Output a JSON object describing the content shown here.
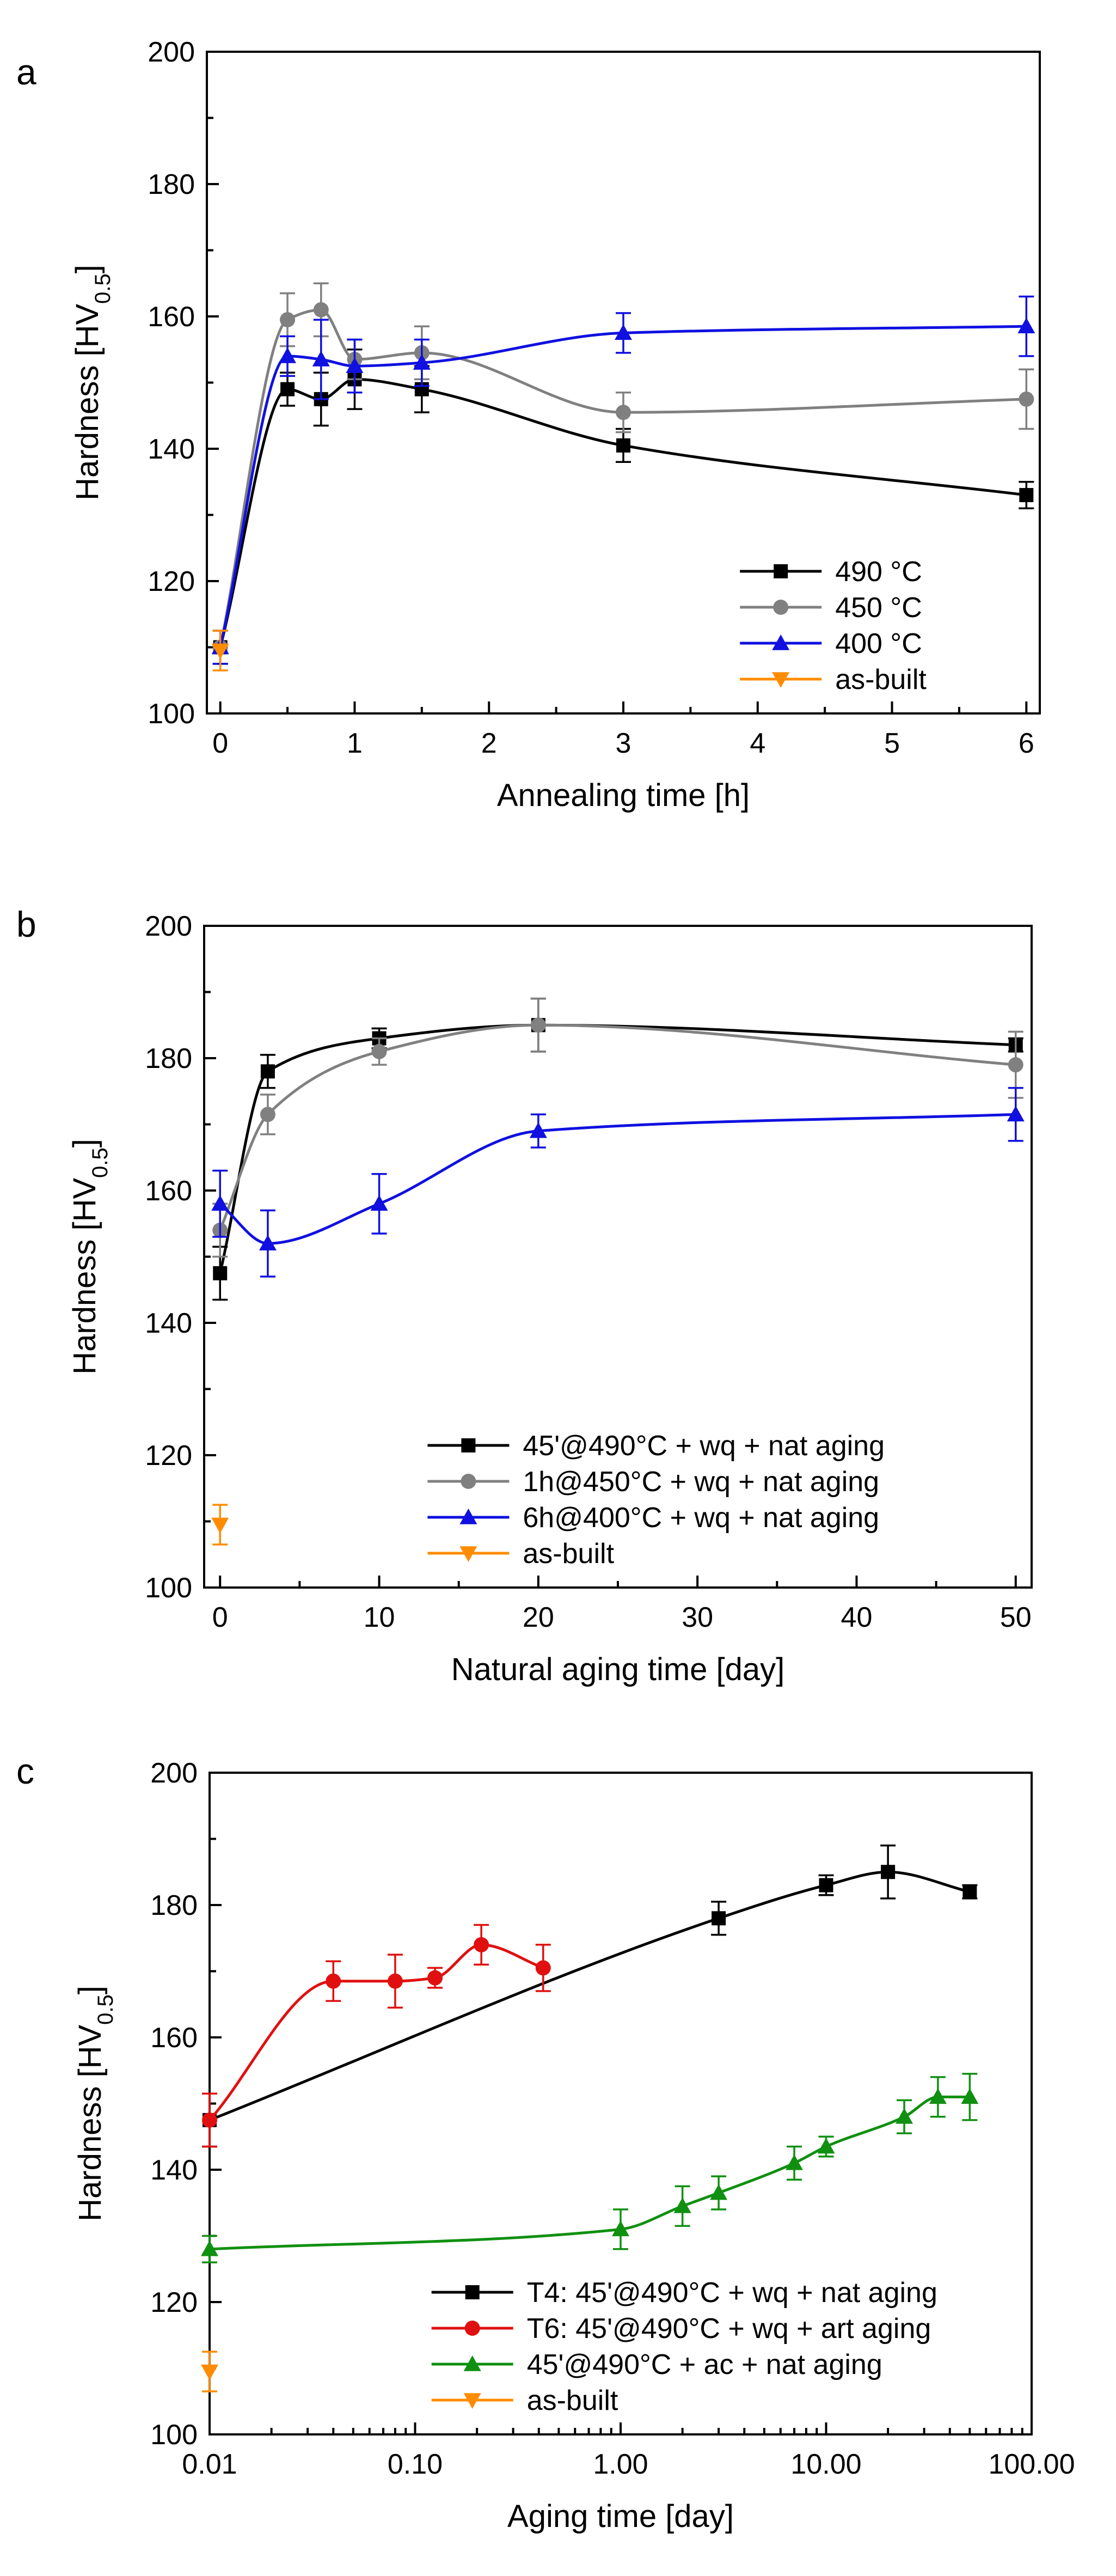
{
  "chart_data": [
    {
      "panel": "a",
      "type": "line",
      "xscale": "linear",
      "xlabel": "Annealing time [h]",
      "ylabel_main": "Hardness [HV",
      "ylabel_sub": "0.5",
      "ylabel_end": "]",
      "xlim": [
        -0.1,
        6.1
      ],
      "ylim": [
        100,
        200
      ],
      "xticks": [
        0,
        1,
        2,
        3,
        4,
        5,
        6
      ],
      "xticklabels": [
        "0",
        "1",
        "2",
        "3",
        "4",
        "5",
        "6"
      ],
      "yticks": [
        100,
        120,
        140,
        160,
        180,
        200
      ],
      "yticklabels": [
        "100",
        "120",
        "140",
        "160",
        "180",
        "200"
      ],
      "legend_position": "bottom-right",
      "series": [
        {
          "name": "490 °C",
          "color": "#000000",
          "marker": "square",
          "x": [
            0,
            0.5,
            0.75,
            1,
            1.5,
            3,
            6
          ],
          "y": [
            110,
            149,
            147.5,
            150.5,
            149,
            140.5,
            133
          ],
          "err": [
            2.5,
            2.5,
            4,
            4.5,
            3.5,
            2.5,
            2
          ]
        },
        {
          "name": "450 °C",
          "color": "#808080",
          "marker": "circle",
          "x": [
            0,
            0.5,
            0.75,
            1,
            1.5,
            3,
            6
          ],
          "y": [
            110,
            159.5,
            161,
            153.5,
            154.5,
            145.5,
            147.5
          ],
          "err": [
            2.5,
            4,
            4,
            3,
            4,
            3,
            4.5
          ]
        },
        {
          "name": "400 °C",
          "color": "#1010e0",
          "marker": "triangle-up",
          "x": [
            0,
            0.5,
            0.75,
            1,
            1.5,
            3,
            6
          ],
          "y": [
            110,
            154,
            153.5,
            152.5,
            153,
            157.5,
            158.5
          ],
          "err": [
            2.5,
            3,
            6,
            4,
            3.5,
            3,
            4.5
          ]
        },
        {
          "name": "as-built",
          "color": "#ff8c00",
          "marker": "triangle-down",
          "x": [
            0
          ],
          "y": [
            109.5
          ],
          "err": [
            3
          ]
        }
      ]
    },
    {
      "panel": "b",
      "type": "line",
      "xscale": "linear",
      "xlabel": "Natural aging time [day]",
      "ylabel_main": "Hardness [HV",
      "ylabel_sub": "0.5",
      "ylabel_end": "]",
      "xlim": [
        -1,
        51
      ],
      "ylim": [
        100,
        200
      ],
      "xticks": [
        0,
        10,
        20,
        30,
        40,
        50
      ],
      "xticklabels": [
        "0",
        "10",
        "20",
        "30",
        "40",
        "50"
      ],
      "yticks": [
        100,
        120,
        140,
        160,
        180,
        200
      ],
      "yticklabels": [
        "100",
        "120",
        "140",
        "160",
        "180",
        "200"
      ],
      "legend_position": "bottom-right",
      "series": [
        {
          "name": "45'@490°C + wq + nat aging",
          "color": "#000000",
          "marker": "square",
          "x": [
            0,
            3,
            10,
            20,
            50
          ],
          "y": [
            147.5,
            178,
            183,
            185,
            182
          ],
          "err": [
            4,
            2.5,
            1.5,
            4,
            1
          ]
        },
        {
          "name": "1h@450°C + wq + nat aging",
          "color": "#808080",
          "marker": "circle",
          "x": [
            0,
            3,
            10,
            20,
            50
          ],
          "y": [
            154,
            171.5,
            181,
            185,
            179
          ],
          "err": [
            4,
            3,
            2,
            4,
            5
          ]
        },
        {
          "name": "6h@400°C + wq + nat aging",
          "color": "#1010e0",
          "marker": "triangle-up",
          "x": [
            0,
            3,
            10,
            20,
            50
          ],
          "y": [
            158,
            152,
            158,
            169,
            171.5
          ],
          "err": [
            5,
            5,
            4.5,
            2.5,
            4
          ]
        },
        {
          "name": "as-built",
          "color": "#ff8c00",
          "marker": "triangle-down",
          "x": [
            0
          ],
          "y": [
            109.5
          ],
          "err": [
            3
          ]
        }
      ]
    },
    {
      "panel": "c",
      "type": "line",
      "xscale": "log",
      "xlabel": "Aging time [day]",
      "ylabel_main": "Hardness [HV",
      "ylabel_sub": "0.5",
      "ylabel_end": "]",
      "xlim": [
        0.01,
        100
      ],
      "ylim": [
        100,
        200
      ],
      "xticks": [
        0.01,
        0.1,
        1,
        10,
        100
      ],
      "xticklabels": [
        "0.01",
        "0.10",
        "1.00",
        "10.00",
        "100.00"
      ],
      "yticks": [
        100,
        120,
        140,
        160,
        180,
        200
      ],
      "yticklabels": [
        "100",
        "120",
        "140",
        "160",
        "180",
        "200"
      ],
      "legend_position": "bottom-right",
      "series": [
        {
          "name": "T4: 45'@490°C + wq + nat aging",
          "color": "#000000",
          "marker": "square",
          "x": [
            0.01,
            3,
            10,
            20,
            50
          ],
          "y": [
            147.5,
            178,
            183,
            185,
            182
          ],
          "err": [
            4,
            2.5,
            1.5,
            4,
            1
          ]
        },
        {
          "name": "T6: 45'@490°C + wq + art aging",
          "color": "#e01010",
          "marker": "circle",
          "x": [
            0.01,
            0.04,
            0.08,
            0.125,
            0.21,
            0.42
          ],
          "y": [
            147.5,
            168.5,
            168.5,
            169,
            174,
            170.5
          ],
          "err": [
            4,
            3,
            4,
            1.5,
            3,
            3.5
          ]
        },
        {
          "name": "45'@490°C + ac + nat aging",
          "color": "#109010",
          "marker": "triangle-up",
          "x": [
            0.01,
            1,
            2,
            3,
            7,
            10,
            24,
            35,
            50
          ],
          "y": [
            128,
            131,
            134.5,
            136.5,
            141,
            143.5,
            148,
            151,
            151
          ],
          "err": [
            2,
            3,
            3,
            2.5,
            2.5,
            1.5,
            2.5,
            3,
            3.5
          ]
        },
        {
          "name": "as-built",
          "color": "#ff8c00",
          "marker": "triangle-down",
          "x": [
            0.01
          ],
          "y": [
            109.5
          ],
          "err": [
            3
          ]
        }
      ]
    }
  ]
}
